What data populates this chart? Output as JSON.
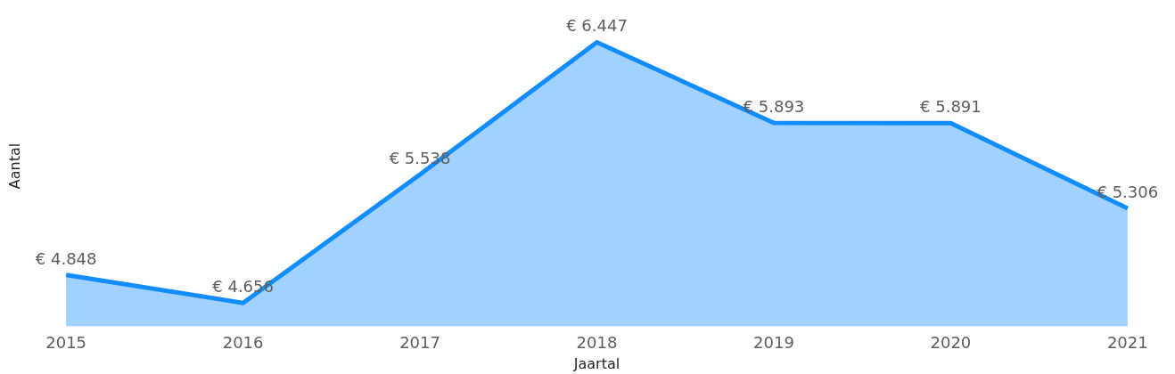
{
  "chart_data": {
    "type": "area",
    "xlabel": "Jaartal",
    "ylabel": "Aantal",
    "categories": [
      "2015",
      "2016",
      "2017",
      "2018",
      "2019",
      "2020",
      "2021"
    ],
    "series": [
      {
        "color": "#118dff",
        "values": [
          4848,
          4656,
          5538,
          6447,
          5893,
          5891,
          5306
        ],
        "value_labels": [
          "€ 4.848",
          "€ 4.656",
          "€ 5.538",
          "€ 6.447",
          "€ 5.893",
          "€ 5.891",
          "€ 5.306"
        ]
      }
    ],
    "tick_labels": "x",
    "grid": false
  }
}
